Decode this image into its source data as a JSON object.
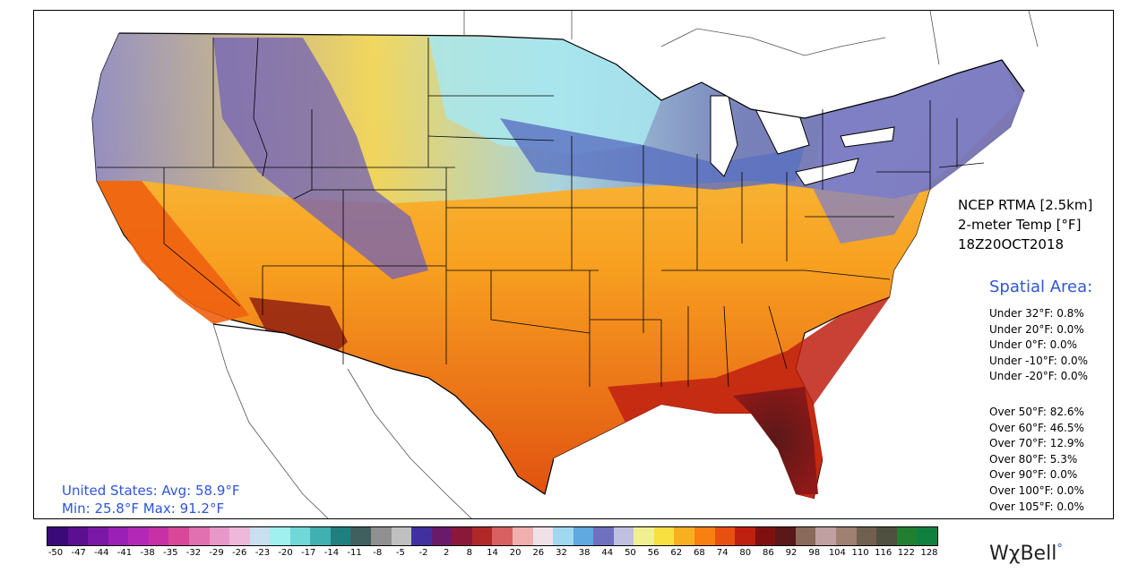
{
  "product": {
    "source": "NCEP RTMA [2.5km]",
    "variable": "2-meter Temp [°F]",
    "valid_time": "18Z20OCT2018"
  },
  "spatial_area": {
    "title": "Spatial Area:",
    "under": [
      "Under 32°F: 0.8%",
      "Under 20°F: 0.0%",
      "Under 0°F: 0.0%",
      "Under -10°F: 0.0%",
      "Under -20°F: 0.0%"
    ],
    "over": [
      "Over 50°F: 82.6%",
      "Over 60°F: 46.5%",
      "Over 70°F: 12.9%",
      "Over 80°F: 5.3%",
      "Over 90°F: 0.0%",
      "Over 100°F: 0.0%",
      "Over 105°F: 0.0%"
    ]
  },
  "stats": {
    "line1": "United States: Avg:  58.9°F",
    "line2": "Min:  25.8°F Max:  91.2°F"
  },
  "colorbar": {
    "ticks": [
      "-50",
      "-47",
      "-44",
      "-41",
      "-38",
      "-35",
      "-32",
      "-29",
      "-26",
      "-23",
      "-20",
      "-17",
      "-14",
      "-11",
      "-8",
      "-5",
      "-2",
      "2",
      "8",
      "14",
      "20",
      "26",
      "32",
      "38",
      "44",
      "50",
      "56",
      "62",
      "68",
      "74",
      "80",
      "86",
      "92",
      "98",
      "104",
      "110",
      "116",
      "122",
      "128"
    ],
    "colors": [
      "#3a0a78",
      "#5a1090",
      "#7a18a8",
      "#9a20b8",
      "#b428b8",
      "#c830a8",
      "#d84898",
      "#e070b0",
      "#e898c8",
      "#eeb8da",
      "#c8e0f0",
      "#a0f0f0",
      "#70d8d8",
      "#40b0b0",
      "#208080",
      "#406060",
      "#909090",
      "#c0c0c0",
      "#4030a0",
      "#6a1a6a",
      "#8a1838",
      "#b02828",
      "#d86060",
      "#f0b0b0",
      "#f0e0e8",
      "#a0d8f0",
      "#60a8e0",
      "#7070c0",
      "#c0c0e0",
      "#f0f090",
      "#f8e040",
      "#f8b020",
      "#f88010",
      "#e85010",
      "#c02010",
      "#801010",
      "#5a1818",
      "#8a6a5a",
      "#c0a0a0",
      "#a08070",
      "#706050",
      "#505040",
      "#208030",
      "#108040"
    ]
  },
  "brand": {
    "name": "WχBell",
    "mark": "°"
  },
  "colors": {
    "frigid": "#4a3a9a",
    "cold": "#7070c0",
    "cool": "#a0d8f0",
    "mild": "#f0f090",
    "warm": "#f8c030",
    "hot": "#f08010",
    "very_hot": "#c02010",
    "extreme": "#6a1818",
    "label_blue": "#2f55d8"
  }
}
